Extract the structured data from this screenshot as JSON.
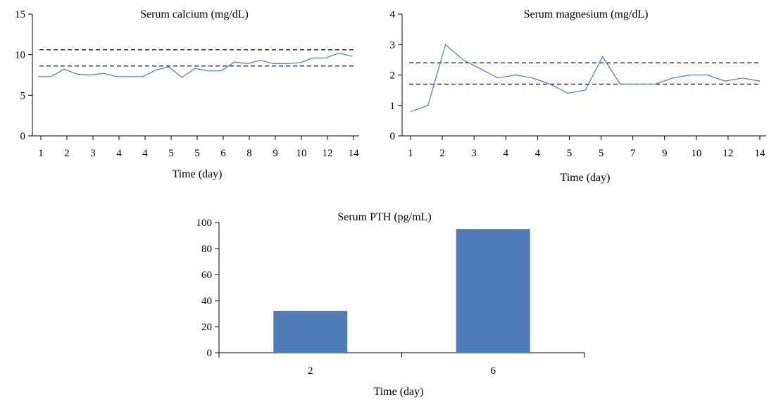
{
  "colors": {
    "line": "#4a7ab5",
    "bar": "#4f7cb6",
    "axis": "#000000",
    "reference": "#000000"
  },
  "chart_data": [
    {
      "type": "line",
      "title": "Serum calcium (mg/dL)",
      "xlabel": "Time (day)",
      "ylabel": "",
      "ylim": [
        0,
        15
      ],
      "yticks": [
        "0",
        "5",
        "10",
        "15"
      ],
      "xtick_labels": [
        "1",
        "2",
        "3",
        "4",
        "4",
        "5",
        "5",
        "6",
        "8",
        "9",
        "10",
        "12",
        "14"
      ],
      "series": [
        {
          "values": [
            7.3,
            7.3,
            8.2,
            7.6,
            7.5,
            7.7,
            7.3,
            7.3,
            7.3,
            8.1,
            8.5,
            7.2,
            8.3,
            8.0,
            8.0,
            9.1,
            8.9,
            9.3,
            8.9,
            8.9,
            9.0,
            9.6,
            9.6,
            10.2,
            9.8
          ]
        }
      ],
      "reference_lines": [
        8.6,
        10.6
      ],
      "grid": false,
      "legend": "none"
    },
    {
      "type": "line",
      "title": "Serum magnesium (mg/dL)",
      "xlabel": "Time (day)",
      "ylabel": "",
      "ylim": [
        0,
        4
      ],
      "yticks": [
        "0",
        "1",
        "2",
        "3",
        "4"
      ],
      "xtick_labels": [
        "1",
        "2",
        "3",
        "4",
        "4",
        "5",
        "5",
        "7",
        "9",
        "10",
        "12",
        "14"
      ],
      "series": [
        {
          "values": [
            0.8,
            1.0,
            3.0,
            2.5,
            2.2,
            1.9,
            2.0,
            1.9,
            1.7,
            1.4,
            1.5,
            2.6,
            1.7,
            1.7,
            1.7,
            1.9,
            2.0,
            2.0,
            1.8,
            1.9,
            1.8
          ]
        }
      ],
      "reference_lines": [
        1.7,
        2.4
      ],
      "grid": false,
      "legend": "none"
    },
    {
      "type": "bar",
      "title": "Serum PTH (pg/mL)",
      "xlabel": "Time (day)",
      "ylabel": "",
      "ylim": [
        0,
        100
      ],
      "yticks": [
        "0",
        "20",
        "40",
        "60",
        "80",
        "100"
      ],
      "categories": [
        "2",
        "6"
      ],
      "values": [
        32,
        95
      ],
      "grid": false,
      "legend": "none"
    }
  ]
}
